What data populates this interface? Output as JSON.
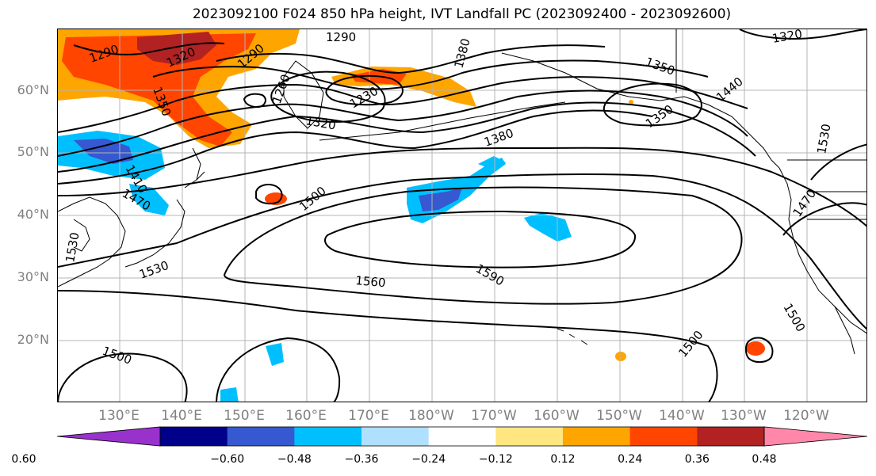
{
  "title": "2023092100 F024 850 hPa height, IVT Landfall PC (2023092400 - 2023092600)",
  "lat_labels": [
    "60°N",
    "50°N",
    "40°N",
    "30°N",
    "20°N"
  ],
  "lon_labels": [
    "130°E",
    "140°E",
    "150°E",
    "160°E",
    "170°E",
    "180°W",
    "170°W",
    "160°W",
    "150°W",
    "140°W",
    "130°W",
    "120°W"
  ],
  "contour_labels": [
    "1290",
    "1320",
    "1290",
    "1260",
    "1290",
    "1350",
    "1380",
    "1230",
    "1320",
    "1350",
    "1440",
    "1350",
    "1380",
    "1410",
    "1470",
    "1500",
    "1530",
    "1530",
    "1560",
    "1590",
    "1500",
    "1500",
    "1500",
    "1470",
    "1530",
    "1320"
  ],
  "colorbar": {
    "ticks": [
      "−0.60",
      "−0.48",
      "−0.36",
      "−0.24",
      "−0.12",
      "0.12",
      "0.24",
      "0.36",
      "0.48",
      "0.60"
    ],
    "colors": [
      "#9932cc",
      "#00008b",
      "#3658d0",
      "#00bfff",
      "#b0e0ff",
      "#ffffff",
      "#ffe680",
      "#ffa500",
      "#ff4500",
      "#b22222",
      "#ff88aa"
    ]
  }
}
